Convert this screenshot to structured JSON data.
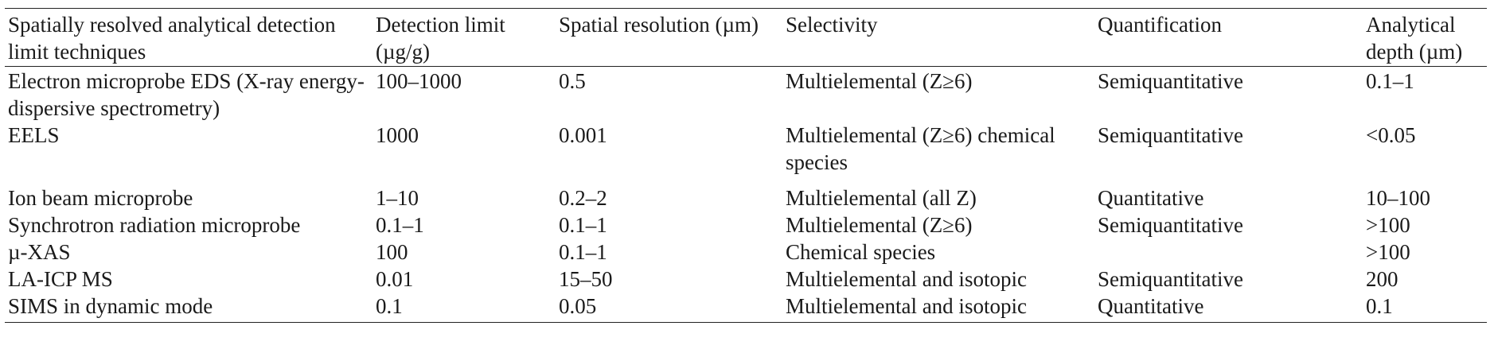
{
  "table": {
    "columns": [
      "Spatially resolved analytical detection limit techniques",
      "Detection limit (µg/g)",
      "Spatial resolution (µm)",
      "Selectivity",
      "Quantification",
      "Analytical depth (µm)"
    ],
    "rows": [
      [
        "Electron microprobe EDS (X-ray energy-dispersive spectrometry)",
        "100–1000",
        "0.5",
        "Multielemental (Z≥6)",
        "Semiquantitative",
        "0.1–1"
      ],
      [
        "EELS",
        "1000",
        "0.001",
        "Multielemental (Z≥6) chemical species",
        "Semiquantitative",
        "<0.05"
      ],
      [
        "Ion beam microprobe",
        "1–10",
        "0.2–2",
        "Multielemental (all Z)",
        "Quantitative",
        "10–100"
      ],
      [
        "Synchrotron radiation microprobe",
        "0.1–1",
        "0.1–1",
        "Multielemental (Z≥6)",
        "Semiquantitative",
        ">100"
      ],
      [
        "µ-XAS",
        "100",
        "0.1–1",
        "Chemical species",
        "",
        ">100"
      ],
      [
        "LA-ICP MS",
        "0.01",
        "15–50",
        "Multielemental and isotopic",
        "Semiquantitative",
        "200"
      ],
      [
        "SIMS in dynamic mode",
        "0.1",
        "0.05",
        "Multielemental and isotopic",
        "Quantitative",
        "0.1"
      ]
    ]
  }
}
